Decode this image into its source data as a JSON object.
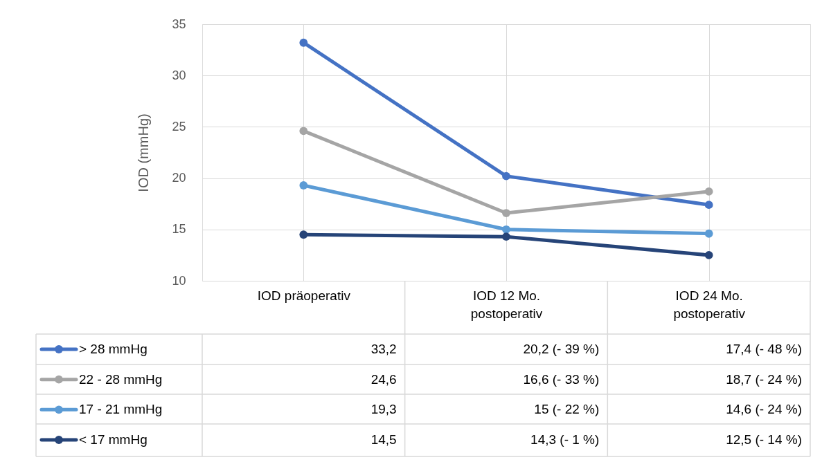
{
  "chart_data": {
    "type": "line",
    "ylabel": "IOD (mmHg)",
    "categories": [
      "IOD präoperativ",
      "IOD 12 Mo.\npostoperativ",
      "IOD 24 Mo.\npostoperativ"
    ],
    "ylim": [
      10,
      35
    ],
    "yticks": [
      10,
      15,
      20,
      25,
      30,
      35
    ],
    "grid": true,
    "legend": "bottom",
    "marker": "circle",
    "line_style": "solid",
    "series": [
      {
        "name": "> 28 mmHg",
        "color": "#4472c4",
        "values": [
          33.2,
          20.2,
          17.4
        ],
        "value_labels": [
          "33,2",
          "20,2 (- 39 %)",
          "17,4 (- 48 %)"
        ]
      },
      {
        "name": "22 - 28 mmHg",
        "color": "#a5a5a5",
        "values": [
          24.6,
          16.6,
          18.7
        ],
        "value_labels": [
          "24,6",
          "16,6 (- 33 %)",
          "18,7 (- 24 %)"
        ]
      },
      {
        "name": "17 - 21 mmHg",
        "color": "#5b9bd5",
        "values": [
          19.3,
          15,
          14.6
        ],
        "value_labels": [
          "19,3",
          "15 (- 22 %)",
          "14,6 (- 24 %)"
        ]
      },
      {
        "name": "< 17 mmHg",
        "color": "#264478",
        "values": [
          14.5,
          14.3,
          12.5
        ],
        "value_labels": [
          "14,5",
          "14,3 (- 1 %)",
          "12,5 (- 14 %)"
        ]
      }
    ]
  }
}
